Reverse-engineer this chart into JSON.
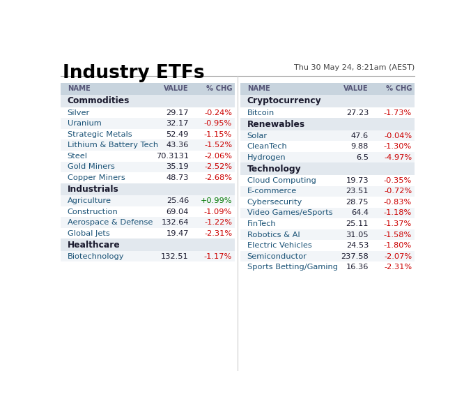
{
  "title": "Industry ETFs",
  "subtitle": "Thu 30 May 24, 8:21am (AEST)",
  "bg_color": "#ffffff",
  "header_bg": "#c8d4de",
  "section_bg": "#e2e8ee",
  "row_bg_odd": "#ffffff",
  "row_bg_even": "#f2f5f8",
  "col_header": [
    "NAME",
    "VALUE",
    "% CHG"
  ],
  "left_table": {
    "sections": [
      {
        "name": "Commodities",
        "rows": [
          {
            "name": "Silver",
            "value": "29.17",
            "chg": "-0.24%",
            "chg_color": "#cc0000"
          },
          {
            "name": "Uranium",
            "value": "32.17",
            "chg": "-0.95%",
            "chg_color": "#cc0000"
          },
          {
            "name": "Strategic Metals",
            "value": "52.49",
            "chg": "-1.15%",
            "chg_color": "#cc0000"
          },
          {
            "name": "Lithium & Battery Tech",
            "value": "43.36",
            "chg": "-1.52%",
            "chg_color": "#cc0000"
          },
          {
            "name": "Steel",
            "value": "70.3131",
            "chg": "-2.06%",
            "chg_color": "#cc0000"
          },
          {
            "name": "Gold Miners",
            "value": "35.19",
            "chg": "-2.52%",
            "chg_color": "#cc0000"
          },
          {
            "name": "Copper Miners",
            "value": "48.73",
            "chg": "-2.68%",
            "chg_color": "#cc0000"
          }
        ]
      },
      {
        "name": "Industrials",
        "rows": [
          {
            "name": "Agriculture",
            "value": "25.46",
            "chg": "+0.99%",
            "chg_color": "#007700"
          },
          {
            "name": "Construction",
            "value": "69.04",
            "chg": "-1.09%",
            "chg_color": "#cc0000"
          },
          {
            "name": "Aerospace & Defense",
            "value": "132.64",
            "chg": "-1.22%",
            "chg_color": "#cc0000"
          },
          {
            "name": "Global Jets",
            "value": "19.47",
            "chg": "-2.31%",
            "chg_color": "#cc0000"
          }
        ]
      },
      {
        "name": "Healthcare",
        "rows": [
          {
            "name": "Biotechnology",
            "value": "132.51",
            "chg": "-1.17%",
            "chg_color": "#cc0000"
          }
        ]
      }
    ]
  },
  "right_table": {
    "sections": [
      {
        "name": "Cryptocurrency",
        "rows": [
          {
            "name": "Bitcoin",
            "value": "27.23",
            "chg": "-1.73%",
            "chg_color": "#cc0000"
          }
        ]
      },
      {
        "name": "Renewables",
        "rows": [
          {
            "name": "Solar",
            "value": "47.6",
            "chg": "-0.04%",
            "chg_color": "#cc0000"
          },
          {
            "name": "CleanTech",
            "value": "9.88",
            "chg": "-1.30%",
            "chg_color": "#cc0000"
          },
          {
            "name": "Hydrogen",
            "value": "6.5",
            "chg": "-4.97%",
            "chg_color": "#cc0000"
          }
        ]
      },
      {
        "name": "Technology",
        "rows": [
          {
            "name": "Cloud Computing",
            "value": "19.73",
            "chg": "-0.35%",
            "chg_color": "#cc0000"
          },
          {
            "name": "E-commerce",
            "value": "23.51",
            "chg": "-0.72%",
            "chg_color": "#cc0000"
          },
          {
            "name": "Cybersecurity",
            "value": "28.75",
            "chg": "-0.83%",
            "chg_color": "#cc0000"
          },
          {
            "name": "Video Games/eSports",
            "value": "64.4",
            "chg": "-1.18%",
            "chg_color": "#cc0000"
          },
          {
            "name": "FinTech",
            "value": "25.11",
            "chg": "-1.37%",
            "chg_color": "#cc0000"
          },
          {
            "name": "Robotics & AI",
            "value": "31.05",
            "chg": "-1.58%",
            "chg_color": "#cc0000"
          },
          {
            "name": "Electric Vehicles",
            "value": "24.53",
            "chg": "-1.80%",
            "chg_color": "#cc0000"
          },
          {
            "name": "Semiconductor",
            "value": "237.58",
            "chg": "-2.07%",
            "chg_color": "#cc0000"
          },
          {
            "name": "Sports Betting/Gaming",
            "value": "16.36",
            "chg": "-2.31%",
            "chg_color": "#cc0000"
          }
        ]
      }
    ]
  },
  "name_color": "#1a5276",
  "value_color": "#1a1a2e",
  "header_text_color": "#555577",
  "section_text_color": "#1a1a2e",
  "title_color": "#000000",
  "subtitle_color": "#444444"
}
